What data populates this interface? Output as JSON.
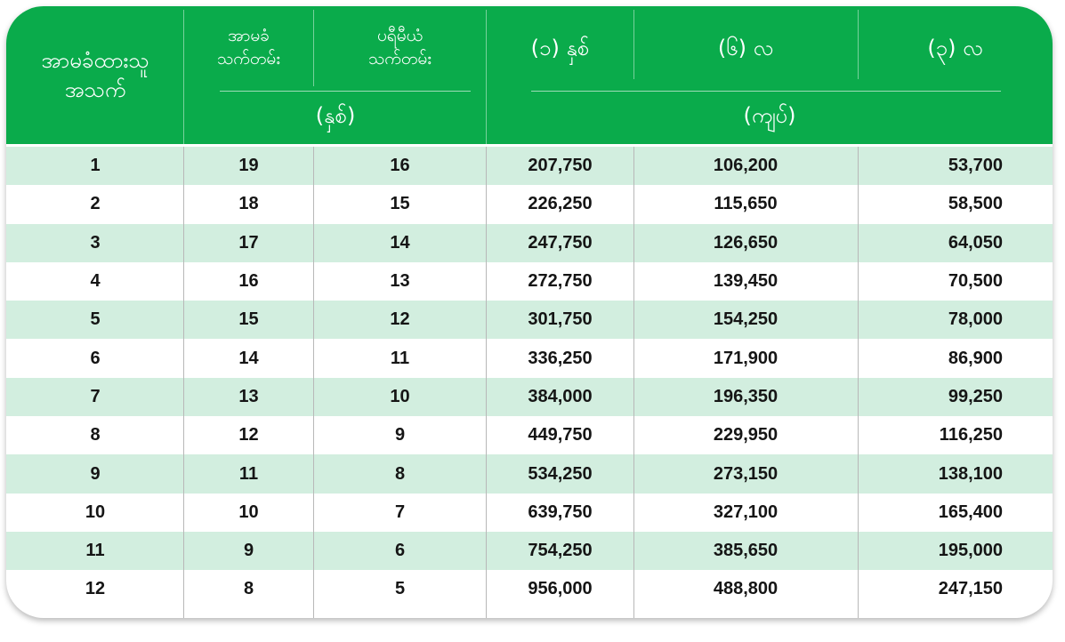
{
  "header": {
    "member_count": "အာမခံထားသူ\nအသက်",
    "insured_term": "အာမခံ\nသက်တမ်း",
    "premium_term": "ပရီမီယံ\nသက်တမ်း",
    "years_unit": "(နှစ်)",
    "one_year": "(၁) နှစ်",
    "six_months": "(၆) လ",
    "three_months": "(၃) လ",
    "kyat_unit": "(ကျပ်)"
  },
  "rows": [
    {
      "age": "1",
      "insured": "19",
      "premium": "16",
      "one_year": "207,750",
      "six_months": "106,200",
      "three_months": "53,700"
    },
    {
      "age": "2",
      "insured": "18",
      "premium": "15",
      "one_year": "226,250",
      "six_months": "115,650",
      "three_months": "58,500"
    },
    {
      "age": "3",
      "insured": "17",
      "premium": "14",
      "one_year": "247,750",
      "six_months": "126,650",
      "three_months": "64,050"
    },
    {
      "age": "4",
      "insured": "16",
      "premium": "13",
      "one_year": "272,750",
      "six_months": "139,450",
      "three_months": "70,500"
    },
    {
      "age": "5",
      "insured": "15",
      "premium": "12",
      "one_year": "301,750",
      "six_months": "154,250",
      "three_months": "78,000"
    },
    {
      "age": "6",
      "insured": "14",
      "premium": "11",
      "one_year": "336,250",
      "six_months": "171,900",
      "three_months": "86,900"
    },
    {
      "age": "7",
      "insured": "13",
      "premium": "10",
      "one_year": "384,000",
      "six_months": "196,350",
      "three_months": "99,250"
    },
    {
      "age": "8",
      "insured": "12",
      "premium": "9",
      "one_year": "449,750",
      "six_months": "229,950",
      "three_months": "116,250"
    },
    {
      "age": "9",
      "insured": "11",
      "premium": "8",
      "one_year": "534,250",
      "six_months": "273,150",
      "three_months": "138,100"
    },
    {
      "age": "10",
      "insured": "10",
      "premium": "7",
      "one_year": "639,750",
      "six_months": "327,100",
      "three_months": "165,400"
    },
    {
      "age": "11",
      "insured": "9",
      "premium": "6",
      "one_year": "754,250",
      "six_months": "385,650",
      "three_months": "195,000"
    },
    {
      "age": "12",
      "insured": "8",
      "premium": "5",
      "one_year": "956,000",
      "six_months": "488,800",
      "three_months": "247,150"
    }
  ],
  "colors": {
    "header_green": "#0aab4b",
    "row_alt": "#d2eedf",
    "text": "#151515"
  }
}
